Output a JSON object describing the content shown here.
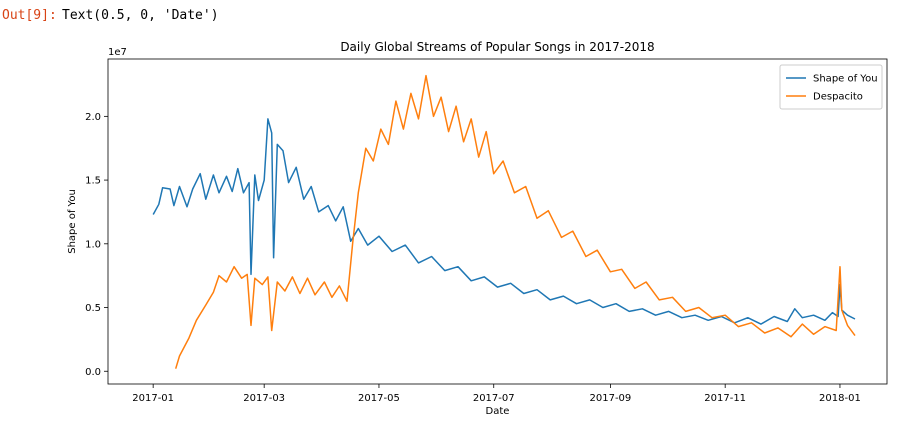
{
  "cell": {
    "prompt": "Out[9]:",
    "output_text": "Text(0.5, 0, 'Date')"
  },
  "chart_data": {
    "type": "line",
    "title": "Daily Global Streams of Popular Songs in 2017-2018",
    "xlabel": "Date",
    "ylabel": "Shape of You",
    "y_offset_label": "1e7",
    "ylim": [
      -1000000.0,
      24500000.0
    ],
    "xlim": [
      "2016-12-08",
      "2018-01-26"
    ],
    "x_ticks": [
      "2017-01-01",
      "2017-03-01",
      "2017-05-01",
      "2017-07-01",
      "2017-09-01",
      "2017-11-01",
      "2018-01-01"
    ],
    "x_tick_labels": [
      "2017-01",
      "2017-03",
      "2017-05",
      "2017-07",
      "2017-09",
      "2017-11",
      "2018-01"
    ],
    "y_ticks": [
      0,
      5000000,
      10000000,
      15000000,
      20000000
    ],
    "y_tick_labels": [
      "0.0",
      "0.5",
      "1.0",
      "1.5",
      "2.0"
    ],
    "grid": false,
    "legend_position": "upper right",
    "series": [
      {
        "name": "Shape of You",
        "color": "#1f77b4",
        "points": [
          [
            "2017-01-01",
            12300000
          ],
          [
            "2017-01-04",
            13100000
          ],
          [
            "2017-01-06",
            14400000
          ],
          [
            "2017-01-10",
            14300000
          ],
          [
            "2017-01-12",
            13000000
          ],
          [
            "2017-01-15",
            14500000
          ],
          [
            "2017-01-19",
            12900000
          ],
          [
            "2017-01-22",
            14300000
          ],
          [
            "2017-01-26",
            15500000
          ],
          [
            "2017-01-29",
            13500000
          ],
          [
            "2017-02-02",
            15400000
          ],
          [
            "2017-02-05",
            14000000
          ],
          [
            "2017-02-09",
            15300000
          ],
          [
            "2017-02-12",
            14100000
          ],
          [
            "2017-02-15",
            15900000
          ],
          [
            "2017-02-18",
            14000000
          ],
          [
            "2017-02-21",
            14800000
          ],
          [
            "2017-02-22",
            7600000
          ],
          [
            "2017-02-24",
            15400000
          ],
          [
            "2017-02-26",
            13400000
          ],
          [
            "2017-03-01",
            15000000
          ],
          [
            "2017-03-03",
            19800000
          ],
          [
            "2017-03-05",
            18700000
          ],
          [
            "2017-03-06",
            8900000
          ],
          [
            "2017-03-08",
            17800000
          ],
          [
            "2017-03-11",
            17300000
          ],
          [
            "2017-03-14",
            14800000
          ],
          [
            "2017-03-18",
            16000000
          ],
          [
            "2017-03-22",
            13500000
          ],
          [
            "2017-03-26",
            14500000
          ],
          [
            "2017-03-30",
            12500000
          ],
          [
            "2017-04-04",
            13000000
          ],
          [
            "2017-04-08",
            11800000
          ],
          [
            "2017-04-12",
            12900000
          ],
          [
            "2017-04-16",
            10200000
          ],
          [
            "2017-04-20",
            11200000
          ],
          [
            "2017-04-25",
            9900000
          ],
          [
            "2017-05-01",
            10600000
          ],
          [
            "2017-05-08",
            9400000
          ],
          [
            "2017-05-15",
            9900000
          ],
          [
            "2017-05-22",
            8500000
          ],
          [
            "2017-05-29",
            9000000
          ],
          [
            "2017-06-05",
            7900000
          ],
          [
            "2017-06-12",
            8200000
          ],
          [
            "2017-06-19",
            7100000
          ],
          [
            "2017-06-26",
            7400000
          ],
          [
            "2017-07-03",
            6600000
          ],
          [
            "2017-07-10",
            6900000
          ],
          [
            "2017-07-17",
            6100000
          ],
          [
            "2017-07-24",
            6400000
          ],
          [
            "2017-07-31",
            5600000
          ],
          [
            "2017-08-07",
            5900000
          ],
          [
            "2017-08-14",
            5300000
          ],
          [
            "2017-08-21",
            5600000
          ],
          [
            "2017-08-28",
            5000000
          ],
          [
            "2017-09-04",
            5300000
          ],
          [
            "2017-09-11",
            4700000
          ],
          [
            "2017-09-18",
            4900000
          ],
          [
            "2017-09-25",
            4400000
          ],
          [
            "2017-10-02",
            4700000
          ],
          [
            "2017-10-09",
            4200000
          ],
          [
            "2017-10-16",
            4400000
          ],
          [
            "2017-10-23",
            4000000
          ],
          [
            "2017-10-30",
            4300000
          ],
          [
            "2017-11-06",
            3800000
          ],
          [
            "2017-11-13",
            4200000
          ],
          [
            "2017-11-20",
            3700000
          ],
          [
            "2017-11-27",
            4300000
          ],
          [
            "2017-12-04",
            3900000
          ],
          [
            "2017-12-08",
            4900000
          ],
          [
            "2017-12-12",
            4200000
          ],
          [
            "2017-12-18",
            4400000
          ],
          [
            "2017-12-24",
            4000000
          ],
          [
            "2017-12-28",
            4600000
          ],
          [
            "2017-12-31",
            4300000
          ],
          [
            "2018-01-01",
            6800000
          ],
          [
            "2018-01-02",
            4800000
          ],
          [
            "2018-01-05",
            4400000
          ],
          [
            "2018-01-09",
            4100000
          ]
        ]
      },
      {
        "name": "Despacito",
        "color": "#ff7f0e",
        "points": [
          [
            "2017-01-13",
            200000
          ],
          [
            "2017-01-15",
            1200000
          ],
          [
            "2017-01-20",
            2600000
          ],
          [
            "2017-01-24",
            4000000
          ],
          [
            "2017-01-29",
            5200000
          ],
          [
            "2017-02-02",
            6200000
          ],
          [
            "2017-02-05",
            7500000
          ],
          [
            "2017-02-09",
            7000000
          ],
          [
            "2017-02-13",
            8200000
          ],
          [
            "2017-02-17",
            7300000
          ],
          [
            "2017-02-20",
            7600000
          ],
          [
            "2017-02-22",
            3600000
          ],
          [
            "2017-02-24",
            7300000
          ],
          [
            "2017-02-28",
            6800000
          ],
          [
            "2017-03-03",
            7400000
          ],
          [
            "2017-03-05",
            3200000
          ],
          [
            "2017-03-08",
            7000000
          ],
          [
            "2017-03-12",
            6300000
          ],
          [
            "2017-03-16",
            7400000
          ],
          [
            "2017-03-20",
            6100000
          ],
          [
            "2017-03-24",
            7300000
          ],
          [
            "2017-03-28",
            6000000
          ],
          [
            "2017-04-02",
            7000000
          ],
          [
            "2017-04-06",
            5800000
          ],
          [
            "2017-04-10",
            6700000
          ],
          [
            "2017-04-14",
            5500000
          ],
          [
            "2017-04-17",
            10000000
          ],
          [
            "2017-04-20",
            14000000
          ],
          [
            "2017-04-24",
            17500000
          ],
          [
            "2017-04-28",
            16500000
          ],
          [
            "2017-05-02",
            19000000
          ],
          [
            "2017-05-06",
            17800000
          ],
          [
            "2017-05-10",
            21200000
          ],
          [
            "2017-05-14",
            19000000
          ],
          [
            "2017-05-18",
            21800000
          ],
          [
            "2017-05-22",
            19800000
          ],
          [
            "2017-05-26",
            23200000
          ],
          [
            "2017-05-30",
            20000000
          ],
          [
            "2017-06-03",
            21500000
          ],
          [
            "2017-06-07",
            18800000
          ],
          [
            "2017-06-11",
            20800000
          ],
          [
            "2017-06-15",
            18000000
          ],
          [
            "2017-06-19",
            19800000
          ],
          [
            "2017-06-23",
            16800000
          ],
          [
            "2017-06-27",
            18800000
          ],
          [
            "2017-07-01",
            15500000
          ],
          [
            "2017-07-06",
            16500000
          ],
          [
            "2017-07-12",
            14000000
          ],
          [
            "2017-07-18",
            14500000
          ],
          [
            "2017-07-24",
            12000000
          ],
          [
            "2017-07-30",
            12600000
          ],
          [
            "2017-08-06",
            10500000
          ],
          [
            "2017-08-12",
            11000000
          ],
          [
            "2017-08-19",
            9000000
          ],
          [
            "2017-08-25",
            9500000
          ],
          [
            "2017-09-01",
            7800000
          ],
          [
            "2017-09-07",
            8000000
          ],
          [
            "2017-09-14",
            6500000
          ],
          [
            "2017-09-20",
            7000000
          ],
          [
            "2017-09-27",
            5600000
          ],
          [
            "2017-10-04",
            5800000
          ],
          [
            "2017-10-11",
            4700000
          ],
          [
            "2017-10-18",
            5000000
          ],
          [
            "2017-10-25",
            4200000
          ],
          [
            "2017-11-01",
            4400000
          ],
          [
            "2017-11-08",
            3500000
          ],
          [
            "2017-11-15",
            3800000
          ],
          [
            "2017-11-22",
            3000000
          ],
          [
            "2017-11-29",
            3400000
          ],
          [
            "2017-12-06",
            2700000
          ],
          [
            "2017-12-12",
            3700000
          ],
          [
            "2017-12-18",
            2900000
          ],
          [
            "2017-12-24",
            3500000
          ],
          [
            "2017-12-30",
            3200000
          ],
          [
            "2018-01-01",
            8200000
          ],
          [
            "2018-01-02",
            4800000
          ],
          [
            "2018-01-05",
            3600000
          ],
          [
            "2018-01-09",
            2800000
          ]
        ]
      }
    ]
  }
}
